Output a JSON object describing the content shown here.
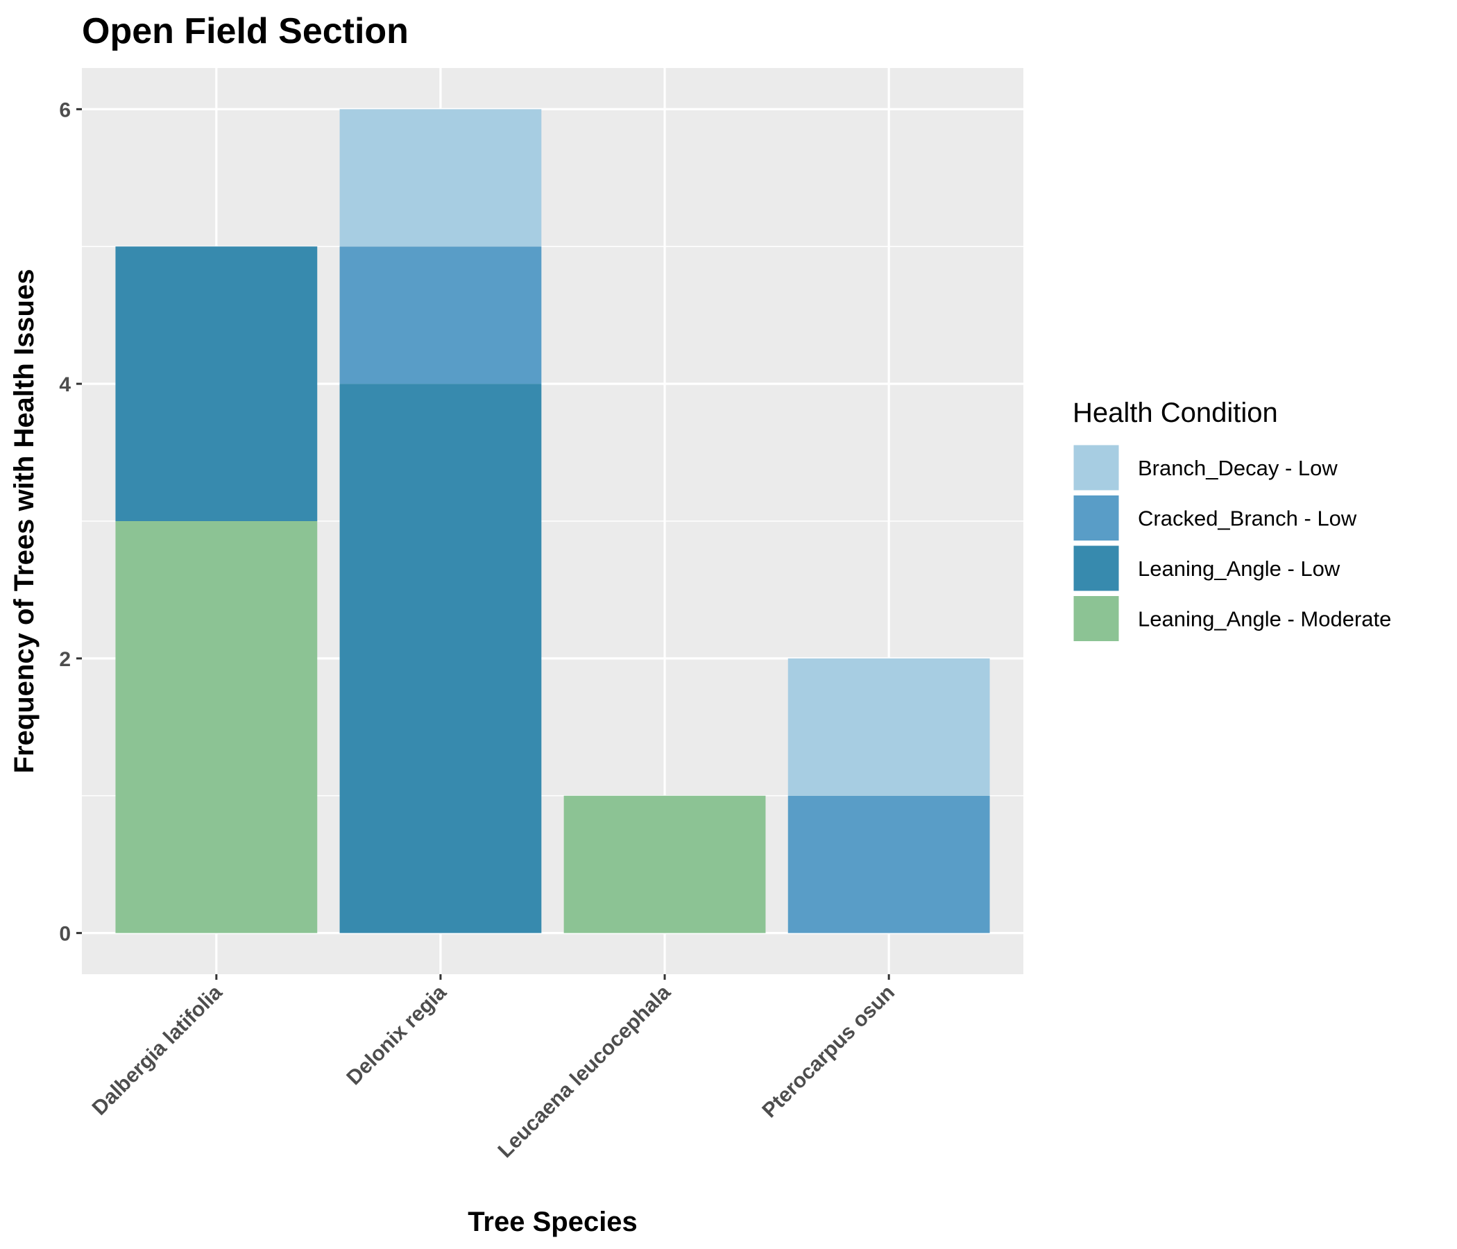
{
  "chart_data": {
    "type": "bar",
    "stacked": true,
    "title": "Open Field Section",
    "xlabel": "Tree Species",
    "ylabel": "Frequency of Trees with Health Issues",
    "categories": [
      "Dalbergia latifolia",
      "Delonix regia",
      "Leucaena leucocephala",
      "Pterocarpus osun"
    ],
    "ylim": [
      -0.3,
      6.3
    ],
    "yticks": [
      0,
      2,
      4,
      6
    ],
    "grid": true,
    "legend": {
      "title": "Health Condition",
      "position": "right"
    },
    "series": [
      {
        "name": "Leaning_Angle - Moderate",
        "color": "#8cc394",
        "values": [
          3,
          0,
          1,
          0
        ]
      },
      {
        "name": "Leaning_Angle - Low",
        "color": "#378aae",
        "values": [
          2,
          4,
          0,
          0
        ]
      },
      {
        "name": "Cracked_Branch - Low",
        "color": "#599dc7",
        "values": [
          0,
          1,
          0,
          1
        ]
      },
      {
        "name": "Branch_Decay - Low",
        "color": "#a7cde2",
        "values": [
          0,
          1,
          0,
          1
        ]
      }
    ],
    "legend_order": [
      "Branch_Decay - Low",
      "Cracked_Branch - Low",
      "Leaning_Angle - Low",
      "Leaning_Angle - Moderate"
    ]
  }
}
